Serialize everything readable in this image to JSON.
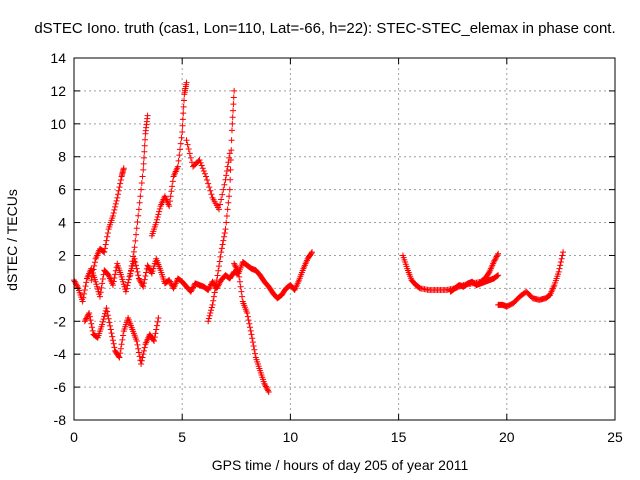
{
  "chart_data": {
    "type": "scatter",
    "title": "dSTEC Iono. truth (cas1, Lon=110, Lat=-66, h=22): STEC-STEC_elemax in phase cont.",
    "xlabel": "GPS time / hours of day 205 of year 2011",
    "ylabel": "dSTEC  / TECUs",
    "xlim": [
      0,
      25
    ],
    "ylim": [
      -8,
      14
    ],
    "xticks": [
      0,
      5,
      10,
      15,
      20,
      25
    ],
    "yticks": [
      -8,
      -6,
      -4,
      -2,
      0,
      2,
      4,
      6,
      8,
      10,
      12,
      14
    ],
    "grid": true,
    "marker": "plus",
    "color": "#ff0000",
    "series": [
      {
        "x": [
          0,
          0.2,
          0.4,
          0.6,
          0.8,
          1.0,
          1.2,
          1.4,
          1.6,
          1.8,
          2.0,
          2.2,
          2.4,
          2.6,
          2.8,
          3.0,
          3.2,
          3.4,
          3.6,
          3.8,
          4.0,
          4.2,
          4.4,
          4.6,
          4.8,
          5.0,
          5.2,
          5.4,
          5.6,
          5.8,
          6.0,
          6.2,
          6.4,
          6.6,
          6.8,
          7.0,
          7.2,
          7.4,
          7.6,
          7.8,
          8.0,
          8.2,
          8.4,
          8.6,
          8.8,
          9.0,
          9.2,
          9.4,
          9.6,
          9.8,
          10.0,
          10.2,
          10.4,
          10.6,
          10.8,
          11.0
        ],
        "y": [
          0.5,
          0.0,
          -0.8,
          0.6,
          1.2,
          0.4,
          -0.5,
          1.1,
          0.8,
          0.2,
          1.5,
          0.7,
          -0.2,
          0.9,
          1.8,
          0.6,
          0.1,
          1.4,
          0.9,
          1.8,
          1.1,
          0.3,
          0.5,
          0.0,
          0.6,
          0.4,
          0.1,
          -0.2,
          0.3,
          0.2,
          0.1,
          -0.1,
          0.4,
          0.0,
          0.5,
          0.8,
          0.6,
          1.0,
          0.9,
          1.6,
          1.4,
          1.2,
          1.1,
          0.8,
          0.4,
          0.1,
          -0.3,
          -0.6,
          -0.4,
          0.0,
          0.2,
          -0.1,
          0.5,
          1.2,
          1.8,
          2.2
        ]
      },
      {
        "x": [
          0.5,
          0.7,
          0.9,
          1.1,
          1.3,
          1.5,
          1.7,
          1.9,
          2.1,
          2.3,
          2.5,
          2.7,
          2.9,
          3.1,
          3.3,
          3.5,
          3.7,
          3.9
        ],
        "y": [
          -2.0,
          -1.5,
          -2.8,
          -3.0,
          -2.2,
          -1.2,
          -2.5,
          -3.8,
          -4.2,
          -2.6,
          -1.8,
          -2.5,
          -3.2,
          -4.6,
          -3.4,
          -2.8,
          -3.2,
          -1.8
        ]
      },
      {
        "x": [
          0.8,
          1.0,
          1.2,
          1.4,
          1.6,
          1.8,
          2.0,
          2.2,
          2.3
        ],
        "y": [
          0.5,
          1.8,
          2.4,
          2.2,
          3.6,
          4.4,
          5.5,
          6.8,
          7.3
        ]
      },
      {
        "x": [
          2.6,
          2.8,
          3.0,
          3.2,
          3.3,
          3.4
        ],
        "y": [
          0.8,
          2.5,
          4.8,
          7.2,
          9.4,
          10.5
        ]
      },
      {
        "x": [
          3.6,
          3.8,
          4.0,
          4.2,
          4.4,
          4.6,
          4.8,
          5.0,
          5.1,
          5.2
        ],
        "y": [
          3.2,
          4.0,
          5.0,
          5.6,
          5.0,
          6.8,
          7.4,
          9.5,
          11.8,
          12.5
        ]
      },
      {
        "x": [
          5.2,
          5.5,
          5.8,
          6.1,
          6.4,
          6.7,
          7.0,
          7.2
        ],
        "y": [
          9.0,
          7.4,
          7.8,
          6.8,
          5.5,
          4.8,
          6.6,
          8.2
        ]
      },
      {
        "x": [
          6.2,
          6.4,
          6.6,
          6.8,
          7.0,
          7.2,
          7.3,
          7.4
        ],
        "y": [
          -2.0,
          -1.0,
          0.5,
          2.2,
          3.6,
          6.0,
          9.6,
          12.0
        ]
      },
      {
        "x": [
          7.4,
          7.6,
          7.8,
          8.0,
          8.2,
          8.4,
          8.6,
          8.8,
          9.0
        ],
        "y": [
          1.5,
          1.0,
          -0.8,
          -1.5,
          -2.8,
          -4.2,
          -5.0,
          -5.8,
          -6.3
        ]
      },
      {
        "x": [
          15.2,
          15.4,
          15.6,
          15.8,
          16.0,
          16.4,
          16.8,
          17.2,
          17.6,
          18.0,
          18.4,
          18.8,
          19.0,
          19.2,
          19.4,
          19.6
        ],
        "y": [
          2.0,
          1.2,
          0.5,
          0.2,
          0.0,
          -0.1,
          -0.1,
          -0.1,
          0.0,
          0.2,
          0.3,
          0.4,
          0.6,
          1.0,
          1.6,
          2.1
        ]
      },
      {
        "x": [
          19.6,
          19.8,
          20.0,
          20.3,
          20.6,
          20.9,
          21.2,
          21.5,
          21.8,
          22.0,
          22.2,
          22.4,
          22.6
        ],
        "y": [
          -1.0,
          -1.0,
          -1.1,
          -0.9,
          -0.5,
          -0.2,
          -0.6,
          -0.7,
          -0.6,
          -0.4,
          0.2,
          1.0,
          2.2
        ]
      },
      {
        "x": [
          17.4,
          17.6,
          17.8,
          18.0,
          18.2,
          18.4,
          18.6,
          18.8,
          19.0,
          19.2,
          19.4,
          19.6
        ],
        "y": [
          -0.2,
          0.0,
          0.2,
          0.1,
          0.3,
          0.4,
          0.2,
          0.3,
          0.4,
          0.5,
          0.6,
          0.8
        ]
      }
    ]
  }
}
